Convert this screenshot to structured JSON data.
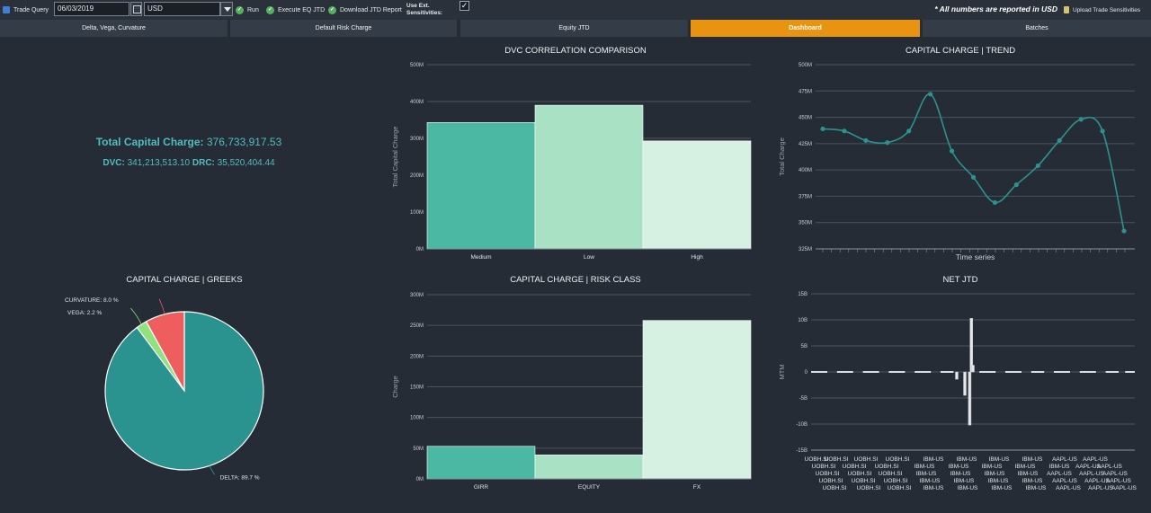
{
  "toolbar": {
    "trade_query_icon": "trade-query-icon",
    "trade_query": "Trade Query",
    "date": "06/03/2019",
    "currency": "USD",
    "run": "Run",
    "execute_eq_jtd": "Execute EQ JTD",
    "download_jtd_report": "Download JTD Report",
    "use_ext_line1": "Use Ext.",
    "use_ext_line2": "Sensitivities:",
    "use_ext_checked": true,
    "note": "* All numbers are reported in USD",
    "upload": "Upload Trade Sensitivities"
  },
  "tabs": [
    {
      "label": "Delta, Vega, Curvature",
      "active": false
    },
    {
      "label": "Default Risk Charge",
      "active": false
    },
    {
      "label": "Equity JTD",
      "active": false
    },
    {
      "label": "Dashboard",
      "active": true
    },
    {
      "label": "Batches",
      "active": false
    }
  ],
  "summary": {
    "total_label": "Total Capital Charge:",
    "total_value": "376,733,917.53",
    "dvc_label": "DVC:",
    "dvc_value": "341,213,513.10",
    "drc_label": "DRC:",
    "drc_value": "35,520,404.44"
  },
  "colors": {
    "accent": "#e89411",
    "teal": "#52bcc0",
    "bar1": "#4ab8a2",
    "bar2": "#a8e1c3",
    "bar3": "#d6f0e2",
    "pie_delta": "#2b938f",
    "pie_vega": "#8fe27d",
    "pie_curvature": "#ef5e5e"
  },
  "chart_data": [
    {
      "id": "dvc",
      "type": "bar",
      "title": "DVC CORRELATION COMPARISON",
      "ylabel": "Total Capital Charge",
      "categories": [
        "Medium",
        "Low",
        "High"
      ],
      "values": [
        343,
        390,
        293
      ],
      "ylim": [
        0,
        500
      ],
      "yticks": [
        "0M",
        "100M",
        "200M",
        "300M",
        "400M",
        "500M"
      ],
      "grid": true
    },
    {
      "id": "trend",
      "type": "line",
      "title": "CAPITAL CHARGE | TREND",
      "ylabel": "Total Charge",
      "xlabel": "Time series",
      "values": [
        439,
        437,
        428,
        426,
        437,
        472,
        418,
        393,
        369,
        386,
        404,
        428,
        448,
        437,
        342
      ],
      "ylim": [
        325,
        500
      ],
      "yticks": [
        "325M",
        "350M",
        "375M",
        "400M",
        "425M",
        "450M",
        "475M",
        "500M"
      ],
      "grid": true
    },
    {
      "id": "greeks",
      "type": "pie",
      "title": "CAPITAL CHARGE | GREEKS",
      "slices": [
        {
          "label": "DELTA: 89.7 %",
          "value": 89.7,
          "color": "#2b938f"
        },
        {
          "label": "VEGA: 2.2 %",
          "value": 2.2,
          "color": "#8fe27d"
        },
        {
          "label": "CURVATURE: 8.0 %",
          "value": 8.0,
          "color": "#ef5e5e"
        }
      ]
    },
    {
      "id": "riskclass",
      "type": "bar",
      "title": "CAPITAL CHARGE | RISK CLASS",
      "ylabel": "Charge",
      "categories": [
        "GIRR",
        "EQUITY",
        "FX"
      ],
      "values": [
        53,
        39,
        258
      ],
      "ylim": [
        0,
        300
      ],
      "yticks": [
        "0M",
        "50M",
        "100M",
        "150M",
        "200M",
        "250M",
        "300M"
      ],
      "grid": true
    },
    {
      "id": "netjtd",
      "type": "bar",
      "title": "NET JTD",
      "ylabel": "MTM",
      "ylim": [
        -15,
        15
      ],
      "yticks": [
        "-15B",
        "-10B",
        "-5B",
        "0",
        "5B",
        "10B",
        "15B"
      ],
      "spikes": [
        {
          "x": 0.45,
          "value": -1.4
        },
        {
          "x": 0.475,
          "value": -4.5
        },
        {
          "x": 0.49,
          "value": -10.2
        },
        {
          "x": 0.495,
          "value": 10.3
        },
        {
          "x": 0.5,
          "value": 1.3
        }
      ],
      "baseline_dash_ranges": [
        [
          0.0,
          0.05
        ],
        [
          0.08,
          0.13
        ],
        [
          0.16,
          0.21
        ],
        [
          0.24,
          0.29
        ],
        [
          0.32,
          0.37
        ],
        [
          0.4,
          0.44
        ],
        [
          0.52,
          0.57
        ],
        [
          0.6,
          0.65
        ],
        [
          0.68,
          0.72
        ],
        [
          0.75,
          0.8
        ],
        [
          0.83,
          0.88
        ],
        [
          0.91,
          0.95
        ],
        [
          0.97,
          1.0
        ]
      ],
      "xtick_rows": [
        [
          "UOBH.SI",
          "UOBH.SI",
          "UOBH.SI",
          "UOBH.SI",
          "IBM-US",
          "IBM-US",
          "IBM-US",
          "IBM-US",
          "AAPL-US",
          "AAPL-US"
        ],
        [
          "UOBH.SI",
          "UOBH.SI",
          "UOBH.SI",
          "IBM-US",
          "IBM-US",
          "IBM-US",
          "IBM-US",
          "IBM-US",
          "AAPL-US",
          "AAPL-US"
        ],
        [
          "UOBH.SI",
          "UOBH.SI",
          "UOBH.SI",
          "IBM-US",
          "IBM-US",
          "IBM-US",
          "IBM-US",
          "AAPL-US",
          "AAPL-US",
          "AAPL-US"
        ],
        [
          "UOBH.SI",
          "UOBH.SI",
          "UOBH.SI",
          "IBM-US",
          "IBM-US",
          "IBM-US",
          "IBM-US",
          "AAPL-US",
          "AAPL-US",
          "AAPL-US"
        ],
        [
          "UOBH.SI",
          "UOBH.SI",
          "UOBH.SI",
          "IBM-US",
          "IBM-US",
          "IBM-US",
          "IBM-US",
          "AAPL-US",
          "AAPL-US",
          "AAPL-US"
        ]
      ]
    }
  ]
}
